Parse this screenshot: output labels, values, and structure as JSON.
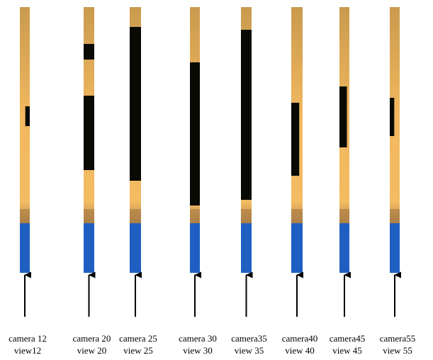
{
  "panels": [
    {
      "camera": "camera 12",
      "view": "view12"
    },
    {
      "camera": "camera 20",
      "view": "view 20"
    },
    {
      "camera": "camera 25",
      "view": "view 25"
    },
    {
      "camera": "camera 30",
      "view": "view 30"
    },
    {
      "camera": "camera35",
      "view": "view 35"
    },
    {
      "camera": "camera40",
      "view": "view 40"
    },
    {
      "camera": "camera45",
      "view": "view 45"
    },
    {
      "camera": "camera55",
      "view": "view 55"
    }
  ]
}
